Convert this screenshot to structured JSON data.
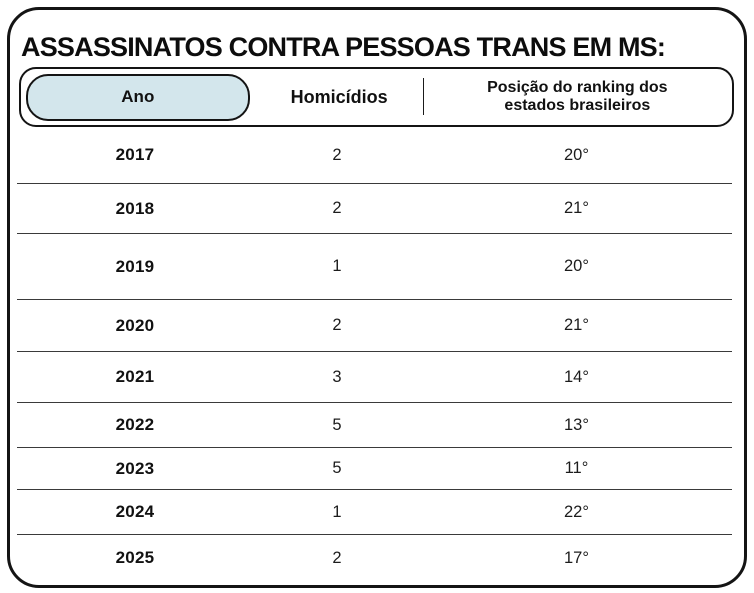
{
  "title": "ASSASSINATOS CONTRA PESSOAS TRANS EM MS:",
  "table": {
    "header": {
      "ano": "Ano",
      "homicidios": "Homicídios",
      "posicao_line1": "Posição do ranking dos",
      "posicao_line2": "estados brasileiros"
    },
    "rows": [
      {
        "ano": "2017",
        "homicidios": "2",
        "posicao": "20°"
      },
      {
        "ano": "2018",
        "homicidios": "2",
        "posicao": "21°"
      },
      {
        "ano": "2019",
        "homicidios": "1",
        "posicao": "20°"
      },
      {
        "ano": "2020",
        "homicidios": "2",
        "posicao": "21°"
      },
      {
        "ano": "2021",
        "homicidios": "3",
        "posicao": "14°"
      },
      {
        "ano": "2022",
        "homicidios": "5",
        "posicao": "13°"
      },
      {
        "ano": "2023",
        "homicidios": "5",
        "posicao": "11°"
      },
      {
        "ano": "2024",
        "homicidios": "1",
        "posicao": "22°"
      },
      {
        "ano": "2025",
        "homicidios": "2",
        "posicao": "17°"
      }
    ]
  },
  "colors": {
    "ano_pill_bg": "#d3e6ec",
    "border": "#141414",
    "divider": "#3a3a3a",
    "background": "#ffffff"
  },
  "chart_data": {
    "type": "table",
    "title": "ASSASSINATOS CONTRA PESSOAS TRANS EM MS:",
    "columns": [
      "Ano",
      "Homicídios",
      "Posição do ranking dos estados brasileiros"
    ],
    "rows": [
      [
        "2017",
        2,
        "20°"
      ],
      [
        "2018",
        2,
        "21°"
      ],
      [
        "2019",
        1,
        "20°"
      ],
      [
        "2020",
        2,
        "21°"
      ],
      [
        "2021",
        3,
        "14°"
      ],
      [
        "2022",
        5,
        "13°"
      ],
      [
        "2023",
        5,
        "11°"
      ],
      [
        "2024",
        1,
        "22°"
      ],
      [
        "2025",
        2,
        "17°"
      ]
    ]
  }
}
